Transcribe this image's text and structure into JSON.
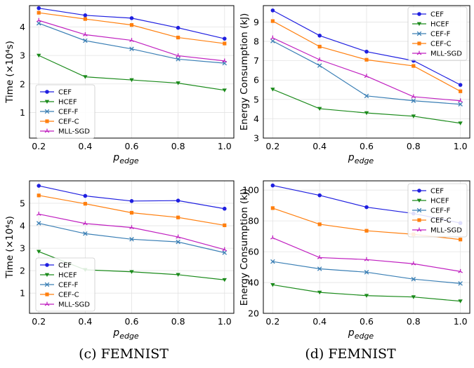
{
  "captions": [
    "(c) FEMNIST",
    "(d) FEMNIST"
  ],
  "colors": {
    "CEF": "#1f1fe0",
    "HCEF": "#1a8a1a",
    "CEF-F": "#3a7fb5",
    "CEF-C": "#ff7f0e",
    "MLL-SGD": "#c020c0"
  },
  "chart_data": [
    {
      "type": "line",
      "xlabel": "p_edge",
      "ylabel": "Time (×10⁴s)",
      "x": [
        0.2,
        0.4,
        0.6,
        0.8,
        1.0
      ],
      "xticks": [
        "0.2",
        "0.4",
        "0.6",
        "0.8",
        "1.0"
      ],
      "yticks": [
        "1",
        "2",
        "3",
        "4"
      ],
      "ylim": [
        0.1,
        4.75
      ],
      "grid": true,
      "legend": "lower-left",
      "series": [
        {
          "name": "CEF",
          "marker": "circle",
          "values": [
            4.66,
            4.41,
            4.31,
            3.97,
            3.59
          ]
        },
        {
          "name": "HCEF",
          "marker": "triangle-down",
          "values": [
            3.0,
            2.25,
            2.14,
            2.03,
            1.78
          ]
        },
        {
          "name": "CEF-F",
          "marker": "x",
          "values": [
            4.13,
            3.52,
            3.23,
            2.87,
            2.73
          ]
        },
        {
          "name": "CEF-C",
          "marker": "square",
          "values": [
            4.5,
            4.28,
            4.07,
            3.63,
            3.42
          ]
        },
        {
          "name": "MLL-SGD",
          "marker": "tri",
          "values": [
            4.23,
            3.73,
            3.53,
            2.99,
            2.81
          ]
        }
      ]
    },
    {
      "type": "line",
      "xlabel": "p_edge",
      "ylabel": "Energy Consumption (kJ)",
      "x": [
        0.2,
        0.4,
        0.6,
        0.8,
        1.0
      ],
      "xticks": [
        "0.2",
        "0.4",
        "0.6",
        "0.8",
        "1.0"
      ],
      "yticks": [
        "3",
        "4",
        "5",
        "6",
        "7",
        "8",
        "9"
      ],
      "ylim": [
        3.0,
        9.85
      ],
      "grid": true,
      "legend": "upper-right",
      "series": [
        {
          "name": "CEF",
          "marker": "circle",
          "values": [
            9.6,
            8.3,
            7.47,
            7.0,
            5.75
          ]
        },
        {
          "name": "HCEF",
          "marker": "triangle-down",
          "values": [
            5.52,
            4.52,
            4.3,
            4.13,
            3.77
          ]
        },
        {
          "name": "CEF-F",
          "marker": "x",
          "values": [
            8.02,
            6.75,
            5.18,
            4.93,
            4.75
          ]
        },
        {
          "name": "CEF-C",
          "marker": "square",
          "values": [
            9.05,
            7.73,
            7.05,
            6.73,
            5.42
          ]
        },
        {
          "name": "MLL-SGD",
          "marker": "tri",
          "values": [
            8.18,
            7.05,
            6.2,
            5.14,
            4.93
          ]
        }
      ]
    },
    {
      "type": "line",
      "xlabel": "p_edge",
      "ylabel": "Time (×10⁴s)",
      "x": [
        0.2,
        0.4,
        0.6,
        0.8,
        1.0
      ],
      "xticks": [
        "0.2",
        "0.4",
        "0.6",
        "0.8",
        "1.0"
      ],
      "yticks": [
        "1",
        "2",
        "3",
        "4",
        "5"
      ],
      "ylim": [
        0.1,
        6.0
      ],
      "grid": true,
      "legend": "lower-left",
      "series": [
        {
          "name": "CEF",
          "marker": "circle",
          "values": [
            5.78,
            5.33,
            5.1,
            5.12,
            4.76
          ]
        },
        {
          "name": "HCEF",
          "marker": "triangle-down",
          "values": [
            2.85,
            2.04,
            1.95,
            1.82,
            1.59
          ]
        },
        {
          "name": "CEF-F",
          "marker": "x",
          "values": [
            4.11,
            3.65,
            3.4,
            3.28,
            2.8
          ]
        },
        {
          "name": "CEF-C",
          "marker": "square",
          "values": [
            5.35,
            4.98,
            4.58,
            4.37,
            4.02
          ]
        },
        {
          "name": "MLL-SGD",
          "marker": "tri",
          "values": [
            4.52,
            4.1,
            3.92,
            3.5,
            2.94
          ]
        }
      ]
    },
    {
      "type": "line",
      "xlabel": "p_edge",
      "ylabel": "Energy Consumption (kJ)",
      "x": [
        0.2,
        0.4,
        0.6,
        0.8,
        1.0
      ],
      "xticks": [
        "0.2",
        "0.4",
        "0.6",
        "0.8",
        "1.0"
      ],
      "yticks": [
        "20",
        "40",
        "60",
        "80",
        "100"
      ],
      "ylim": [
        20,
        106
      ],
      "grid": true,
      "legend": "upper-right",
      "series": [
        {
          "name": "CEF",
          "marker": "circle",
          "values": [
            103,
            96.6,
            88.9,
            84.8,
            78.6
          ]
        },
        {
          "name": "HCEF",
          "marker": "triangle-down",
          "values": [
            38.5,
            33.6,
            31.5,
            30.6,
            27.9
          ]
        },
        {
          "name": "CEF-F",
          "marker": "x",
          "values": [
            53.6,
            48.9,
            46.7,
            42.2,
            39.4
          ]
        },
        {
          "name": "CEF-C",
          "marker": "square",
          "values": [
            88.3,
            77.8,
            73.6,
            71.3,
            67.9
          ]
        },
        {
          "name": "MLL-SGD",
          "marker": "tri",
          "values": [
            69,
            56.2,
            54.9,
            52.2,
            47.2
          ]
        }
      ]
    }
  ]
}
